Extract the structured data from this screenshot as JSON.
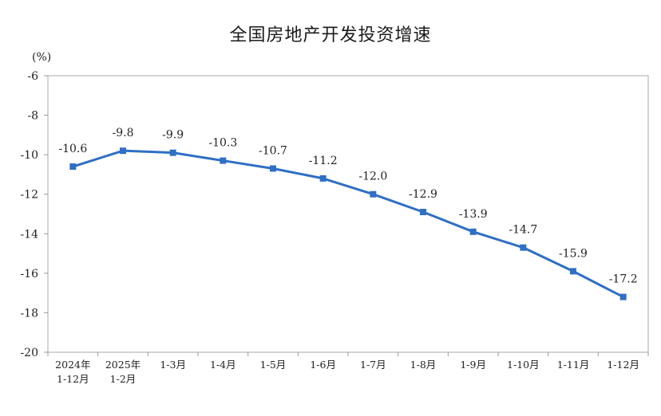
{
  "chart_data": {
    "type": "line",
    "title": "全国房地产开发投资增速",
    "y_unit": "(%)",
    "ylim": [
      -20,
      -6
    ],
    "y_ticks": [
      -6,
      -8,
      -10,
      -12,
      -14,
      -16,
      -18,
      -20
    ],
    "categories": [
      [
        "2024年",
        "1-12月"
      ],
      [
        "2025年",
        "1-2月"
      ],
      [
        "1-3月"
      ],
      [
        "1-4月"
      ],
      [
        "1-5月"
      ],
      [
        "1-6月"
      ],
      [
        "1-7月"
      ],
      [
        "1-8月"
      ],
      [
        "1-9月"
      ],
      [
        "1-10月"
      ],
      [
        "1-11月"
      ],
      [
        "1-12月"
      ]
    ],
    "series": [
      {
        "values": [
          -10.6,
          -9.8,
          -9.9,
          -10.3,
          -10.7,
          -11.2,
          -12.0,
          -12.9,
          -13.9,
          -14.7,
          -15.9,
          -17.2
        ],
        "labels": [
          "-10.6",
          "-9.8",
          "-9.9",
          "-10.3",
          "-10.7",
          "-11.2",
          "-12.0",
          "-12.9",
          "-13.9",
          "-14.7",
          "-15.9",
          "-17.2"
        ]
      }
    ],
    "line_color": "#2f6fc4",
    "axis_color": "#999999",
    "grid": false,
    "legend": "none"
  }
}
